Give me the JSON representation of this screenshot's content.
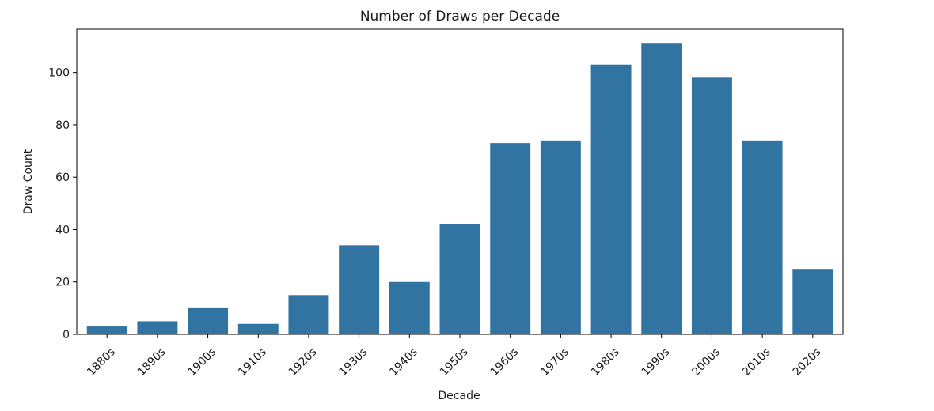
{
  "chart_data": {
    "type": "bar",
    "title": "Number of Draws per Decade",
    "xlabel": "Decade",
    "ylabel": "Draw Count",
    "categories": [
      "1880s",
      "1890s",
      "1900s",
      "1910s",
      "1920s",
      "1930s",
      "1940s",
      "1950s",
      "1960s",
      "1970s",
      "1980s",
      "1990s",
      "2000s",
      "2010s",
      "2020s"
    ],
    "values": [
      3,
      5,
      10,
      4,
      15,
      34,
      20,
      42,
      73,
      74,
      103,
      111,
      98,
      74,
      25
    ],
    "ylim": [
      0,
      116.5
    ],
    "yticks": [
      0,
      20,
      40,
      60,
      80,
      100
    ],
    "bar_color": "#3274a1",
    "grid": false,
    "legend": false
  }
}
